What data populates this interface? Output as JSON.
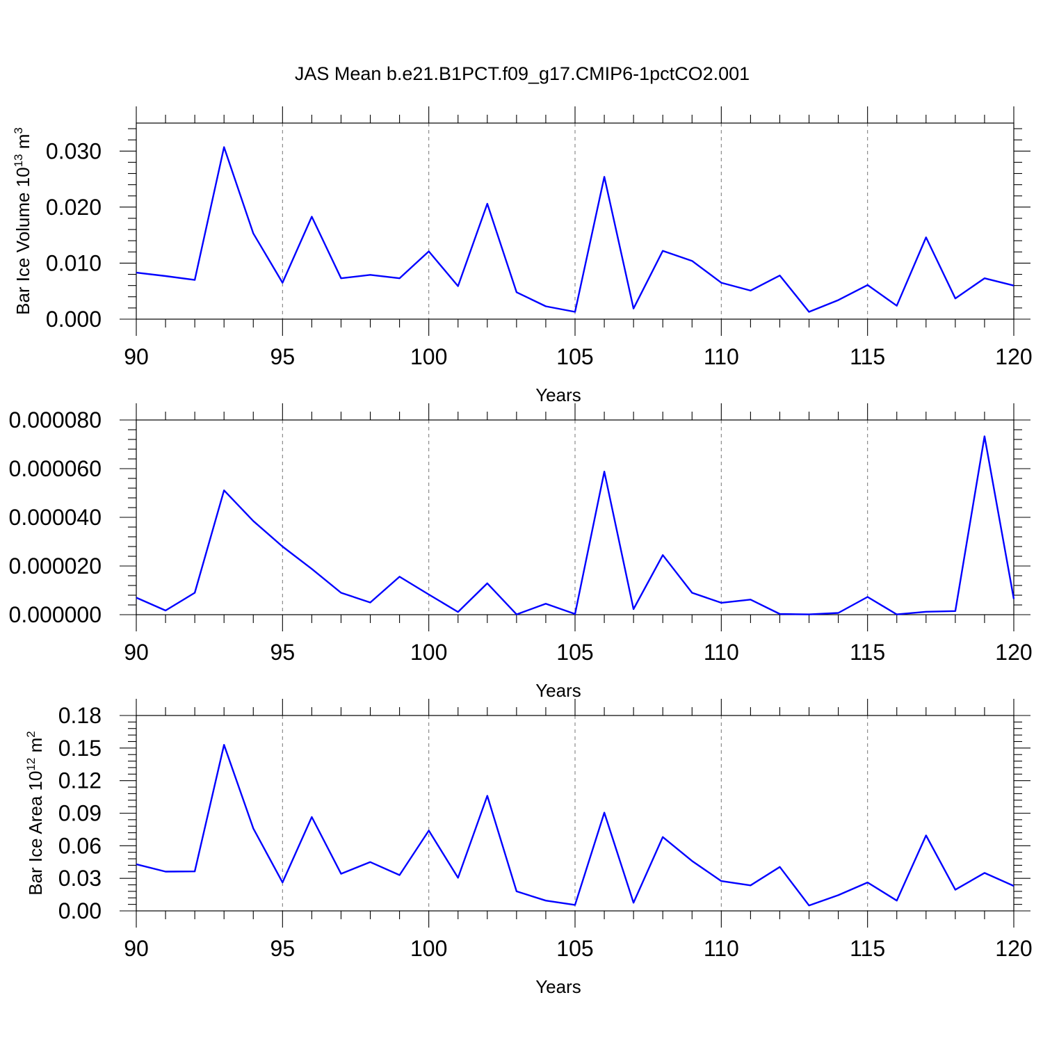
{
  "title": "JAS Mean b.e21.B1PCT.f09_g17.CMIP6-1pctCO2.001",
  "colors": {
    "line": "#0000ff",
    "grid": "#808080",
    "axis": "#000000"
  },
  "chart_data": [
    {
      "type": "line",
      "xlabel": "Years",
      "ylabel": {
        "text": "Bar Ice Volume 10",
        "sup": "13",
        "unit": " m",
        "unit_sup": "3"
      },
      "xlim": [
        90,
        120
      ],
      "ylim": [
        0.0,
        0.035
      ],
      "xticks": [
        90,
        95,
        100,
        105,
        110,
        115,
        120
      ],
      "yticks": [
        "0.000",
        "0.010",
        "0.020",
        "0.030"
      ],
      "grid": "vertical dashed at major x ticks",
      "x": [
        90,
        91,
        92,
        93,
        94,
        95,
        96,
        97,
        98,
        99,
        100,
        101,
        102,
        103,
        104,
        105,
        106,
        107,
        108,
        109,
        110,
        111,
        112,
        113,
        114,
        115,
        116,
        117,
        118,
        119,
        120
      ],
      "series": [
        {
          "values": [
            0.0083,
            0.0077,
            0.007,
            0.0307,
            0.0153,
            0.0065,
            0.0183,
            0.0073,
            0.0079,
            0.0073,
            0.0121,
            0.0059,
            0.0206,
            0.0048,
            0.0023,
            0.0013,
            0.0254,
            0.0019,
            0.0122,
            0.0104,
            0.0065,
            0.0051,
            0.0078,
            0.0013,
            0.0034,
            0.0061,
            0.0024,
            0.0146,
            0.0037,
            0.0073,
            0.006
          ]
        }
      ]
    },
    {
      "type": "line",
      "xlabel": "Years",
      "ylabel": null,
      "xlim": [
        90,
        120
      ],
      "ylim": [
        0.0,
        8e-05
      ],
      "xticks": [
        90,
        95,
        100,
        105,
        110,
        115,
        120
      ],
      "yticks": [
        "0.000000",
        "0.000020",
        "0.000040",
        "0.000060",
        "0.000080"
      ],
      "grid": "vertical dashed at major x ticks",
      "x": [
        90,
        91,
        92,
        93,
        94,
        95,
        96,
        97,
        98,
        99,
        100,
        101,
        102,
        103,
        104,
        105,
        106,
        107,
        108,
        109,
        110,
        111,
        112,
        113,
        114,
        115,
        116,
        117,
        118,
        119,
        120
      ],
      "series": [
        {
          "values": [
            7e-06,
            1.7e-06,
            9e-06,
            5.11e-05,
            3.85e-05,
            2.8e-05,
            1.88e-05,
            9e-06,
            5e-06,
            1.56e-05,
            8.3e-06,
            1.1e-06,
            1.29e-05,
            1e-07,
            4.5e-06,
            3e-07,
            5.88e-05,
            2.3e-06,
            2.45e-05,
            9e-06,
            4.9e-06,
            6.2e-06,
            3e-07,
            1e-07,
            7e-07,
            7.3e-06,
            1e-07,
            1.2e-06,
            1.5e-06,
            7.33e-05,
            6.5e-06
          ]
        }
      ]
    },
    {
      "type": "line",
      "xlabel": "Years",
      "ylabel": {
        "text": "Bar Ice Area 10",
        "sup": "12",
        "unit": " m",
        "unit_sup": "2"
      },
      "xlim": [
        90,
        120
      ],
      "ylim": [
        0.0,
        0.18
      ],
      "xticks": [
        90,
        95,
        100,
        105,
        110,
        115,
        120
      ],
      "yticks": [
        "0.00",
        "0.03",
        "0.06",
        "0.09",
        "0.12",
        "0.15",
        "0.18"
      ],
      "grid": "vertical dashed at major x ticks",
      "x": [
        90,
        91,
        92,
        93,
        94,
        95,
        96,
        97,
        98,
        99,
        100,
        101,
        102,
        103,
        104,
        105,
        106,
        107,
        108,
        109,
        110,
        111,
        112,
        113,
        114,
        115,
        116,
        117,
        118,
        119,
        120
      ],
      "series": [
        {
          "values": [
            0.043,
            0.0362,
            0.0364,
            0.153,
            0.076,
            0.0262,
            0.0865,
            0.0342,
            0.045,
            0.033,
            0.074,
            0.0305,
            0.106,
            0.018,
            0.0095,
            0.0055,
            0.0905,
            0.0075,
            0.068,
            0.046,
            0.0275,
            0.0235,
            0.0405,
            0.005,
            0.0145,
            0.0262,
            0.0095,
            0.0695,
            0.0195,
            0.035,
            0.023
          ]
        }
      ]
    }
  ]
}
